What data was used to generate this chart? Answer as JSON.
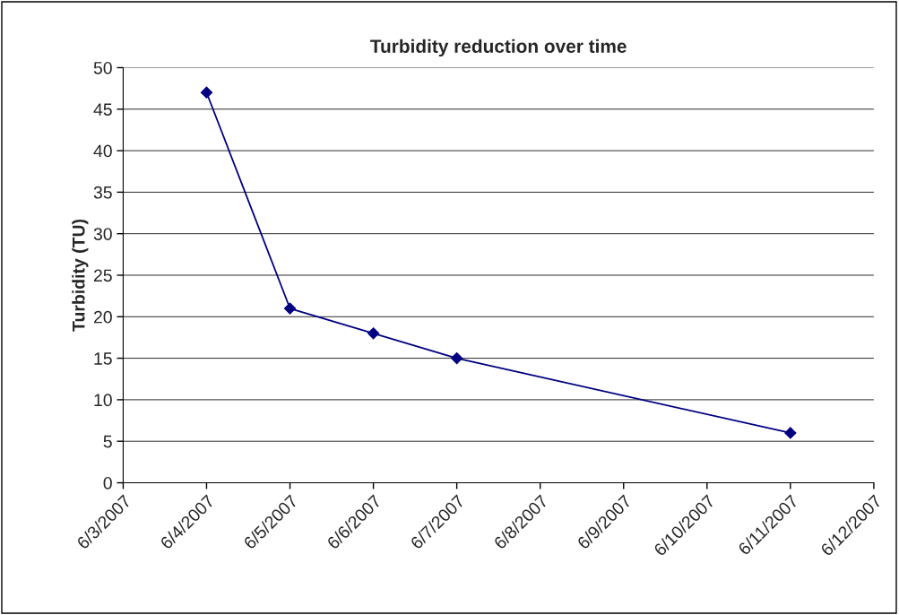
{
  "chart_data": {
    "type": "line",
    "title": "Turbidity reduction over time",
    "ylabel": "Turbidity (TU)",
    "x": [
      "2007-06-04",
      "2007-06-05",
      "2007-06-06",
      "2007-06-07",
      "2007-06-11"
    ],
    "series": [
      {
        "color": "#000080",
        "values": [
          47,
          21,
          18,
          15,
          6
        ]
      }
    ],
    "xlim": [
      "2007-06-03",
      "2007-06-12"
    ],
    "xticks": [
      {
        "value": "2007-06-03",
        "label": "6/3/2007"
      },
      {
        "value": "2007-06-04",
        "label": "6/4/2007"
      },
      {
        "value": "2007-06-05",
        "label": "6/5/2007"
      },
      {
        "value": "2007-06-06",
        "label": "6/6/2007"
      },
      {
        "value": "2007-06-07",
        "label": "6/7/2007"
      },
      {
        "value": "2007-06-08",
        "label": "6/8/2007"
      },
      {
        "value": "2007-06-09",
        "label": "6/9/2007"
      },
      {
        "value": "2007-06-10",
        "label": "6/10/2007"
      },
      {
        "value": "2007-06-11",
        "label": "6/11/2007"
      },
      {
        "value": "2007-06-12",
        "label": "6/12/2007"
      }
    ],
    "ylim": [
      0,
      50
    ],
    "yticks": [
      0,
      5,
      10,
      15,
      20,
      25,
      30,
      35,
      40,
      45,
      50
    ],
    "grid": "y",
    "marker": "diamond",
    "line_style": "solid"
  }
}
